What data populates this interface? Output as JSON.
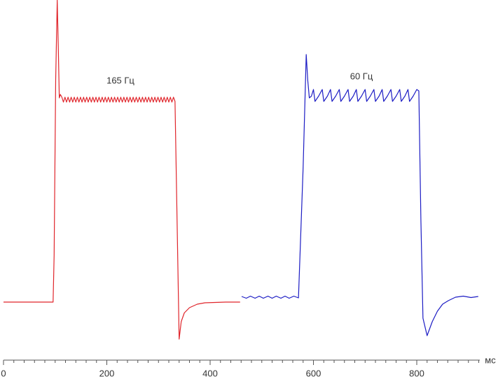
{
  "chart_data": {
    "type": "line",
    "xlabel": "мс",
    "xlim": [
      0,
      922
    ],
    "ylim": [
      0,
      103
    ],
    "xticks": [
      0,
      200,
      400,
      600,
      800
    ],
    "minor_xticks": [
      20,
      40,
      60,
      80,
      100,
      120,
      140,
      160,
      180,
      220,
      240,
      260,
      280,
      300,
      320,
      340,
      360,
      380,
      420,
      440,
      460,
      480,
      500,
      520,
      540,
      560,
      580,
      620,
      640,
      660,
      680,
      700,
      720,
      740,
      760,
      780,
      820,
      840,
      860,
      880,
      900,
      920
    ],
    "series": [
      {
        "name": "165 Гц",
        "color": "#e0252b",
        "x": [
          0,
          50,
          96,
          98,
          101,
          104,
          106,
          108,
          110,
          113,
          116,
          119,
          122,
          125,
          128,
          131,
          134,
          137,
          140,
          143,
          146,
          149,
          152,
          155,
          158,
          161,
          164,
          167,
          170,
          173,
          176,
          179,
          182,
          185,
          188,
          191,
          194,
          197,
          200,
          203,
          206,
          209,
          212,
          215,
          218,
          221,
          224,
          227,
          230,
          233,
          236,
          239,
          242,
          245,
          248,
          251,
          254,
          257,
          260,
          263,
          266,
          269,
          272,
          275,
          278,
          281,
          284,
          287,
          290,
          293,
          296,
          299,
          302,
          305,
          308,
          311,
          314,
          317,
          320,
          323,
          326,
          329,
          332,
          336,
          340,
          344,
          350,
          360,
          375,
          390,
          410,
          430,
          458
        ],
        "values": [
          16.6,
          16.6,
          16.6,
          30,
          80,
          103,
          90,
          75,
          76,
          75.2,
          73.8,
          75.2,
          73.8,
          75.2,
          73.8,
          75.2,
          73.8,
          75.2,
          73.8,
          75.2,
          73.8,
          75.2,
          73.8,
          75.2,
          73.8,
          75.2,
          73.8,
          75.2,
          73.8,
          75.2,
          73.8,
          75.2,
          73.8,
          75.2,
          73.8,
          75.2,
          73.8,
          75.2,
          73.8,
          75.2,
          73.8,
          75.2,
          73.8,
          75.2,
          73.8,
          75.2,
          73.8,
          75.2,
          73.8,
          75.2,
          73.8,
          75.2,
          73.8,
          75.2,
          73.8,
          75.2,
          73.8,
          75.2,
          73.8,
          75.2,
          73.8,
          75.2,
          73.8,
          75.2,
          73.8,
          75.2,
          73.8,
          75.2,
          73.8,
          75.2,
          73.8,
          75.2,
          73.8,
          75.2,
          73.8,
          75.2,
          73.8,
          75.2,
          73.8,
          75.2,
          73.8,
          75.2,
          74,
          40,
          6,
          11,
          13.5,
          15,
          16,
          16.4,
          16.5,
          16.6,
          16.6
        ]
      },
      {
        "name": "60 Гц",
        "color": "#1c1cc4",
        "x": [
          461,
          470,
          478,
          487,
          495,
          503,
          512,
          520,
          528,
          537,
          545,
          553,
          562,
          571,
          580,
          586,
          589,
          592,
          596,
          600,
          603,
          610,
          617,
          620,
          627,
          633,
          636,
          643,
          650,
          653,
          660,
          667,
          670,
          677,
          683,
          686,
          693,
          700,
          703,
          710,
          717,
          720,
          727,
          733,
          736,
          743,
          750,
          753,
          760,
          767,
          770,
          777,
          783,
          786,
          793,
          800,
          804,
          808,
          812,
          820,
          830,
          840,
          850,
          861,
          875,
          890,
          905,
          919
        ],
        "values": [
          18.2,
          17.7,
          18.3,
          17.7,
          18.3,
          17.7,
          18.3,
          17.7,
          18.3,
          17.7,
          18.3,
          17.7,
          18.3,
          17.8,
          55,
          87.4,
          80,
          75,
          75.5,
          77.4,
          74,
          75.5,
          77.4,
          74,
          75.5,
          77.4,
          74,
          75.5,
          77.4,
          74,
          75.5,
          77.4,
          74,
          75.5,
          77.4,
          74,
          75.5,
          77.4,
          74,
          75.5,
          77.4,
          74,
          75.5,
          77.4,
          74,
          75.5,
          77.4,
          74,
          75.5,
          77.4,
          74,
          75.5,
          77.4,
          74,
          75.5,
          77.4,
          77,
          40,
          12,
          7,
          11,
          14,
          16,
          17,
          18,
          18.3,
          17.9,
          18.2
        ]
      }
    ]
  }
}
